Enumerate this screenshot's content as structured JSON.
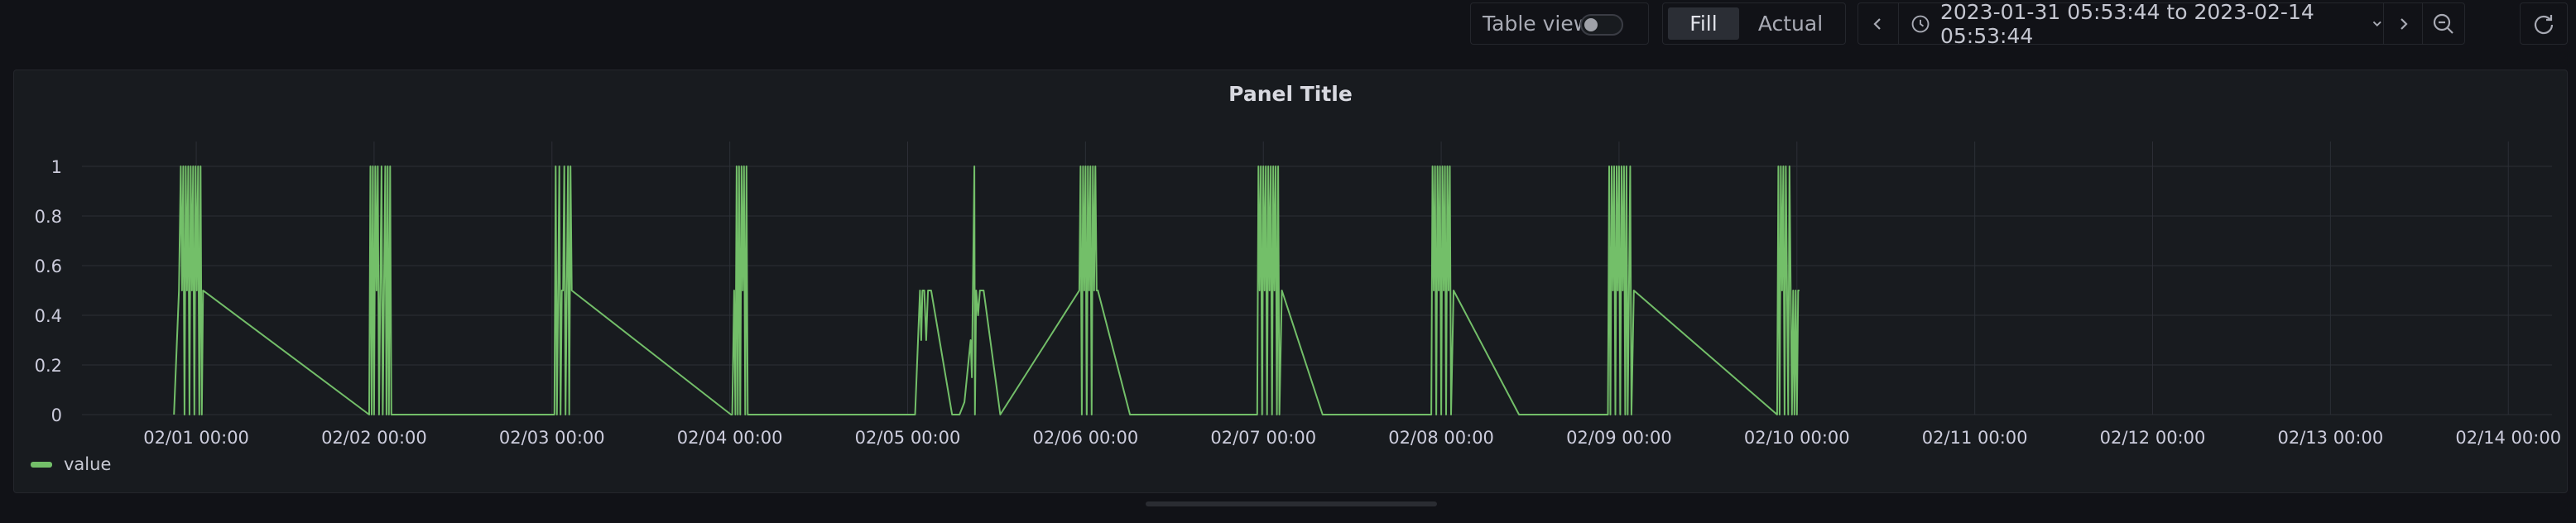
{
  "toolbar": {
    "table_view_label": "Table view",
    "fill_label": "Fill",
    "actual_label": "Actual",
    "time_range": "2023-01-31 05:53:44 to 2023-02-14 05:53:44",
    "icons": [
      "chevron-left-icon",
      "clock-icon",
      "chevron-down-icon",
      "chevron-right-icon",
      "zoom-out-icon",
      "refresh-icon"
    ]
  },
  "panel": {
    "title": "Panel Title"
  },
  "colors": {
    "series": "#73bf69",
    "grid": "#2c2f36",
    "axis_text": "#ccccdc",
    "panel_bg": "#181b1f"
  },
  "chart_data": {
    "type": "line",
    "title": "Panel Title",
    "xlabel": "",
    "ylabel": "",
    "ylim": [
      0,
      1
    ],
    "y_ticks": [
      "0",
      "0.2",
      "0.4",
      "0.6",
      "0.8",
      "1"
    ],
    "x_ticks": [
      "02/01 00:00",
      "02/02 00:00",
      "02/03 00:00",
      "02/04 00:00",
      "02/05 00:00",
      "02/06 00:00",
      "02/07 00:00",
      "02/08 00:00",
      "02/09 00:00",
      "02/10 00:00",
      "02/11 00:00",
      "02/12 00:00",
      "02/13 00:00",
      "02/14 00:00"
    ],
    "xlim": [
      "2023-01-31 05:53:44",
      "2023-02-14 05:53:44"
    ],
    "grid": true,
    "legend": "bottom-left",
    "series": [
      {
        "name": "value",
        "points": [
          [
            "2023-01-31 21:00",
            0
          ],
          [
            "2023-01-31 21:40",
            0.5
          ],
          [
            "2023-01-31 21:55",
            1
          ],
          [
            "2023-01-31 22:05",
            0.5
          ],
          [
            "2023-01-31 22:15",
            1
          ],
          [
            "2023-01-31 22:25",
            0
          ],
          [
            "2023-01-31 22:35",
            1
          ],
          [
            "2023-01-31 22:45",
            0.5
          ],
          [
            "2023-01-31 22:55",
            1
          ],
          [
            "2023-01-31 23:05",
            0
          ],
          [
            "2023-01-31 23:15",
            1
          ],
          [
            "2023-01-31 23:25",
            0.5
          ],
          [
            "2023-01-31 23:35",
            1
          ],
          [
            "2023-01-31 23:45",
            0
          ],
          [
            "2023-01-31 23:55",
            1
          ],
          [
            "2023-02-01 00:05",
            0.5
          ],
          [
            "2023-02-01 00:15",
            1
          ],
          [
            "2023-02-01 00:25",
            0
          ],
          [
            "2023-02-01 00:35",
            1
          ],
          [
            "2023-02-01 00:45",
            0
          ],
          [
            "2023-02-01 00:55",
            0.5
          ],
          [
            "2023-02-01 23:20",
            0
          ],
          [
            "2023-02-01 23:30",
            1
          ],
          [
            "2023-02-01 23:40",
            0
          ],
          [
            "2023-02-01 23:50",
            1
          ],
          [
            "2023-02-02 00:00",
            0
          ],
          [
            "2023-02-02 00:10",
            1
          ],
          [
            "2023-02-02 00:20",
            0.5
          ],
          [
            "2023-02-02 00:30",
            1
          ],
          [
            "2023-02-02 00:40",
            0
          ],
          [
            "2023-02-02 00:50",
            0.5
          ],
          [
            "2023-02-02 01:00",
            1
          ],
          [
            "2023-02-02 01:10",
            0
          ],
          [
            "2023-02-02 01:20",
            0.5
          ],
          [
            "2023-02-02 01:30",
            1
          ],
          [
            "2023-02-02 01:40",
            0
          ],
          [
            "2023-02-02 01:50",
            1
          ],
          [
            "2023-02-02 02:00",
            0
          ],
          [
            "2023-02-02 02:10",
            1
          ],
          [
            "2023-02-02 02:20",
            0
          ],
          [
            "2023-02-03 00:00",
            0
          ],
          [
            "2023-02-03 00:20",
            0
          ],
          [
            "2023-02-03 00:30",
            1
          ],
          [
            "2023-02-03 00:40",
            0
          ],
          [
            "2023-02-03 00:50",
            0.5
          ],
          [
            "2023-02-03 01:00",
            1
          ],
          [
            "2023-02-03 01:10",
            0
          ],
          [
            "2023-02-03 01:20",
            0.5
          ],
          [
            "2023-02-03 01:30",
            0.5
          ],
          [
            "2023-02-03 01:40",
            1
          ],
          [
            "2023-02-03 01:50",
            0
          ],
          [
            "2023-02-03 02:00",
            0.5
          ],
          [
            "2023-02-03 02:10",
            1
          ],
          [
            "2023-02-03 02:20",
            0
          ],
          [
            "2023-02-03 02:30",
            1
          ],
          [
            "2023-02-03 02:40",
            0.5
          ],
          [
            "2023-02-04 00:10",
            0
          ],
          [
            "2023-02-04 00:20",
            0
          ],
          [
            "2023-02-04 00:35",
            0.5
          ],
          [
            "2023-02-04 00:45",
            0
          ],
          [
            "2023-02-04 00:55",
            1
          ],
          [
            "2023-02-04 01:05",
            0
          ],
          [
            "2023-02-04 01:15",
            1
          ],
          [
            "2023-02-04 01:25",
            0
          ],
          [
            "2023-02-04 01:35",
            1
          ],
          [
            "2023-02-04 01:45",
            0.5
          ],
          [
            "2023-02-04 01:55",
            1
          ],
          [
            "2023-02-04 02:05",
            0
          ],
          [
            "2023-02-04 02:15",
            1
          ],
          [
            "2023-02-04 02:25",
            0
          ],
          [
            "2023-02-05 01:00",
            0
          ],
          [
            "2023-02-05 01:40",
            0.5
          ],
          [
            "2023-02-05 01:50",
            0.3
          ],
          [
            "2023-02-05 02:00",
            0.5
          ],
          [
            "2023-02-05 02:15",
            0.5
          ],
          [
            "2023-02-05 02:30",
            0.3
          ],
          [
            "2023-02-05 02:45",
            0.5
          ],
          [
            "2023-02-05 03:10",
            0.5
          ],
          [
            "2023-02-05 06:00",
            0
          ],
          [
            "2023-02-05 07:00",
            0
          ],
          [
            "2023-02-05 07:40",
            0.05
          ],
          [
            "2023-02-05 08:30",
            0.3
          ],
          [
            "2023-02-05 08:40",
            0.15
          ],
          [
            "2023-02-05 09:00",
            1
          ],
          [
            "2023-02-05 09:05",
            0
          ],
          [
            "2023-02-05 09:15",
            0.5
          ],
          [
            "2023-02-05 09:30",
            0.4
          ],
          [
            "2023-02-05 09:45",
            0.5
          ],
          [
            "2023-02-05 10:15",
            0.5
          ],
          [
            "2023-02-05 12:30",
            0
          ],
          [
            "2023-02-05 23:10",
            0.5
          ],
          [
            "2023-02-05 23:20",
            1
          ],
          [
            "2023-02-05 23:30",
            0
          ],
          [
            "2023-02-05 23:40",
            1
          ],
          [
            "2023-02-05 23:50",
            0.5
          ],
          [
            "2023-02-06 00:00",
            1
          ],
          [
            "2023-02-06 00:10",
            0
          ],
          [
            "2023-02-06 00:20",
            1
          ],
          [
            "2023-02-06 00:30",
            0.5
          ],
          [
            "2023-02-06 00:40",
            1
          ],
          [
            "2023-02-06 00:50",
            0
          ],
          [
            "2023-02-06 01:00",
            1
          ],
          [
            "2023-02-06 01:10",
            0.5
          ],
          [
            "2023-02-06 01:20",
            1
          ],
          [
            "2023-02-06 01:30",
            0.5
          ],
          [
            "2023-02-06 01:40",
            0.5
          ],
          [
            "2023-02-06 06:00",
            0
          ],
          [
            "2023-02-06 09:00",
            0
          ],
          [
            "2023-02-06 23:10",
            0
          ],
          [
            "2023-02-06 23:20",
            1
          ],
          [
            "2023-02-06 23:30",
            0.5
          ],
          [
            "2023-02-06 23:40",
            1
          ],
          [
            "2023-02-06 23:50",
            0
          ],
          [
            "2023-02-07 00:00",
            1
          ],
          [
            "2023-02-07 00:10",
            0.5
          ],
          [
            "2023-02-07 00:20",
            1
          ],
          [
            "2023-02-07 00:30",
            0
          ],
          [
            "2023-02-07 00:40",
            1
          ],
          [
            "2023-02-07 00:50",
            0.5
          ],
          [
            "2023-02-07 01:00",
            1
          ],
          [
            "2023-02-07 01:10",
            0
          ],
          [
            "2023-02-07 01:20",
            1
          ],
          [
            "2023-02-07 01:30",
            0.5
          ],
          [
            "2023-02-07 01:40",
            1
          ],
          [
            "2023-02-07 01:50",
            0
          ],
          [
            "2023-02-07 02:00",
            1
          ],
          [
            "2023-02-07 02:10",
            0
          ],
          [
            "2023-02-07 02:30",
            0.5
          ],
          [
            "2023-02-07 08:00",
            0
          ],
          [
            "2023-02-07 21:00",
            0
          ],
          [
            "2023-02-07 22:40",
            0
          ],
          [
            "2023-02-07 22:50",
            1
          ],
          [
            "2023-02-07 23:00",
            0.5
          ],
          [
            "2023-02-07 23:10",
            1
          ],
          [
            "2023-02-07 23:20",
            0
          ],
          [
            "2023-02-07 23:30",
            1
          ],
          [
            "2023-02-07 23:40",
            0.5
          ],
          [
            "2023-02-07 23:50",
            1
          ],
          [
            "2023-02-08 00:00",
            0
          ],
          [
            "2023-02-08 00:10",
            1
          ],
          [
            "2023-02-08 00:20",
            0.5
          ],
          [
            "2023-02-08 00:30",
            1
          ],
          [
            "2023-02-08 00:40",
            0
          ],
          [
            "2023-02-08 00:50",
            1
          ],
          [
            "2023-02-08 01:00",
            0.5
          ],
          [
            "2023-02-08 01:10",
            1
          ],
          [
            "2023-02-08 01:20",
            0
          ],
          [
            "2023-02-08 01:40",
            0.5
          ],
          [
            "2023-02-08 10:30",
            0
          ],
          [
            "2023-02-08 18:00",
            0
          ],
          [
            "2023-02-08 22:30",
            0
          ],
          [
            "2023-02-08 22:40",
            1
          ],
          [
            "2023-02-08 22:50",
            0
          ],
          [
            "2023-02-08 23:00",
            1
          ],
          [
            "2023-02-08 23:10",
            0.5
          ],
          [
            "2023-02-08 23:20",
            1
          ],
          [
            "2023-02-08 23:30",
            0
          ],
          [
            "2023-02-08 23:40",
            1
          ],
          [
            "2023-02-08 23:50",
            0.5
          ],
          [
            "2023-02-09 00:00",
            1
          ],
          [
            "2023-02-09 00:10",
            0
          ],
          [
            "2023-02-09 00:20",
            1
          ],
          [
            "2023-02-09 00:30",
            0.5
          ],
          [
            "2023-02-09 00:40",
            1
          ],
          [
            "2023-02-09 00:50",
            0
          ],
          [
            "2023-02-09 01:00",
            1
          ],
          [
            "2023-02-09 01:10",
            0
          ],
          [
            "2023-02-09 01:30",
            1
          ],
          [
            "2023-02-09 01:40",
            0
          ],
          [
            "2023-02-09 02:00",
            0.5
          ],
          [
            "2023-02-09 21:20",
            0
          ],
          [
            "2023-02-09 21:30",
            1
          ],
          [
            "2023-02-09 21:40",
            0
          ],
          [
            "2023-02-09 21:50",
            1
          ],
          [
            "2023-02-09 22:00",
            0.5
          ],
          [
            "2023-02-09 22:10",
            1
          ],
          [
            "2023-02-09 22:20",
            0
          ],
          [
            "2023-02-09 22:30",
            1
          ],
          [
            "2023-02-09 22:40",
            0.5
          ],
          [
            "2023-02-09 22:50",
            0
          ],
          [
            "2023-02-09 23:00",
            1
          ],
          [
            "2023-02-09 23:10",
            0.5
          ],
          [
            "2023-02-09 23:20",
            0
          ],
          [
            "2023-02-09 23:30",
            0.5
          ],
          [
            "2023-02-09 23:40",
            0
          ],
          [
            "2023-02-09 23:50",
            0.5
          ],
          [
            "2023-02-10 00:00",
            0
          ],
          [
            "2023-02-10 00:10",
            0.5
          ],
          [
            "2023-02-10 00:20",
            0.5
          ]
        ]
      }
    ]
  }
}
